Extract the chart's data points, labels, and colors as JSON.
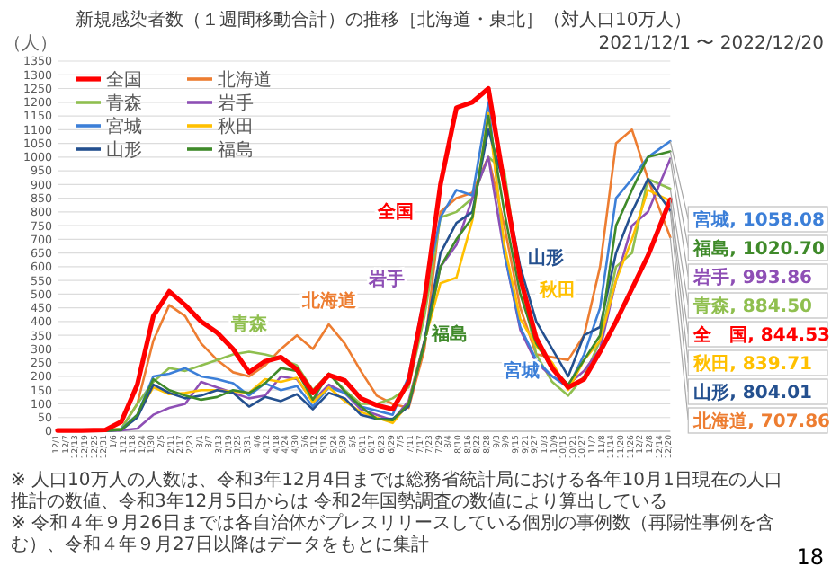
{
  "chart_data": {
    "type": "line",
    "title": "新規感染者数（１週間移動合計）の推移［北海道・東北］（対人口10万人）",
    "subtitle": "2021/12/1 〜 2022/12/20",
    "ylabel": "（人）",
    "x": [
      "2021-12-01",
      "2021-12-16",
      "2021-12-31",
      "2022-01-10",
      "2022-01-20",
      "2022-01-30",
      "2022-02-09",
      "2022-02-19",
      "2022-03-01",
      "2022-03-11",
      "2022-03-21",
      "2022-03-31",
      "2022-04-10",
      "2022-04-20",
      "2022-04-30",
      "2022-05-10",
      "2022-05-20",
      "2022-05-30",
      "2022-06-09",
      "2022-06-19",
      "2022-06-29",
      "2022-07-09",
      "2022-07-19",
      "2022-07-29",
      "2022-08-08",
      "2022-08-18",
      "2022-08-28",
      "2022-09-07",
      "2022-09-17",
      "2022-09-27",
      "2022-10-07",
      "2022-10-17",
      "2022-10-27",
      "2022-11-06",
      "2022-11-16",
      "2022-11-26",
      "2022-12-06",
      "2022-12-20"
    ],
    "series": [
      {
        "name": "全国",
        "color": "#ff0000",
        "values": [
          3,
          3,
          5,
          35,
          170,
          420,
          510,
          460,
          400,
          360,
          300,
          215,
          255,
          270,
          225,
          140,
          205,
          185,
          120,
          95,
          80,
          180,
          480,
          900,
          1180,
          1200,
          1250,
          900,
          560,
          340,
          230,
          160,
          190,
          290,
          400,
          520,
          640,
          844.53
        ]
      },
      {
        "name": "北海道",
        "color": "#ed7d31",
        "values": [
          3,
          3,
          3,
          10,
          100,
          330,
          460,
          420,
          320,
          260,
          215,
          200,
          240,
          300,
          350,
          300,
          390,
          320,
          220,
          130,
          100,
          85,
          300,
          800,
          850,
          870,
          1000,
          750,
          450,
          280,
          270,
          260,
          350,
          600,
          1050,
          1100,
          920,
          707.86
        ]
      },
      {
        "name": "青森",
        "color": "#8fbf4f",
        "values": [
          null,
          null,
          3,
          10,
          100,
          180,
          230,
          220,
          240,
          260,
          280,
          290,
          280,
          265,
          240,
          150,
          210,
          150,
          100,
          100,
          120,
          160,
          420,
          780,
          800,
          850,
          1000,
          950,
          550,
          280,
          180,
          130,
          200,
          330,
          600,
          650,
          920,
          884.5
        ]
      },
      {
        "name": "岩手",
        "color": "#8e4fb5",
        "values": [
          2,
          2,
          2,
          3,
          10,
          60,
          85,
          100,
          180,
          160,
          140,
          120,
          130,
          200,
          190,
          110,
          170,
          140,
          80,
          60,
          40,
          110,
          330,
          600,
          680,
          850,
          1000,
          650,
          370,
          250,
          200,
          170,
          220,
          300,
          550,
          750,
          800,
          993.86
        ]
      },
      {
        "name": "宮城",
        "color": "#3c7fd8",
        "values": [
          null,
          null,
          null,
          8,
          60,
          200,
          210,
          230,
          200,
          190,
          175,
          130,
          175,
          150,
          165,
          90,
          160,
          140,
          90,
          75,
          60,
          200,
          500,
          780,
          880,
          860,
          1200,
          650,
          380,
          260,
          200,
          160,
          280,
          450,
          850,
          920,
          1000,
          1058.08
        ]
      },
      {
        "name": "秋田",
        "color": "#ffc000",
        "values": [
          null,
          null,
          null,
          null,
          60,
          160,
          135,
          140,
          150,
          150,
          145,
          140,
          190,
          180,
          195,
          105,
          160,
          110,
          70,
          50,
          30,
          100,
          330,
          540,
          560,
          770,
          1160,
          680,
          410,
          310,
          250,
          150,
          260,
          330,
          550,
          700,
          880,
          839.71
        ]
      },
      {
        "name": "山形",
        "color": "#24508f",
        "values": [
          null,
          2,
          2,
          5,
          50,
          170,
          140,
          120,
          130,
          150,
          140,
          90,
          125,
          110,
          135,
          80,
          140,
          120,
          60,
          45,
          45,
          90,
          330,
          650,
          760,
          800,
          1100,
          900,
          600,
          400,
          300,
          200,
          350,
          380,
          650,
          800,
          920,
          804.01
        ]
      },
      {
        "name": "福島",
        "color": "#3f8a2a",
        "values": [
          2,
          2,
          2,
          5,
          60,
          190,
          150,
          130,
          115,
          125,
          150,
          140,
          175,
          230,
          220,
          115,
          210,
          145,
          90,
          45,
          40,
          100,
          320,
          600,
          700,
          780,
          1150,
          800,
          500,
          320,
          230,
          170,
          260,
          350,
          750,
          880,
          1000,
          1020.7
        ]
      }
    ],
    "xlim": [
      "2021-12-01",
      "2022-12-20"
    ],
    "ylim": [
      0,
      1350
    ],
    "xticks": [
      {
        "value": "2021-12-01",
        "label": "12/1"
      },
      {
        "value": "2021-12-07",
        "label": "12/7"
      },
      {
        "value": "2021-12-13",
        "label": "12/13"
      },
      {
        "value": "2021-12-19",
        "label": "12/19"
      },
      {
        "value": "2021-12-25",
        "label": "12/25"
      },
      {
        "value": "2021-12-31",
        "label": "12/31"
      },
      {
        "value": "2022-01-06",
        "label": "1/6"
      },
      {
        "value": "2022-01-12",
        "label": "1/12"
      },
      {
        "value": "2022-01-18",
        "label": "1/18"
      },
      {
        "value": "2022-01-24",
        "label": "1/24"
      },
      {
        "value": "2022-01-30",
        "label": "1/30"
      },
      {
        "value": "2022-02-05",
        "label": "2/5"
      },
      {
        "value": "2022-02-11",
        "label": "2/11"
      },
      {
        "value": "2022-02-17",
        "label": "2/17"
      },
      {
        "value": "2022-02-23",
        "label": "2/23"
      },
      {
        "value": "2022-03-01",
        "label": "3/1"
      },
      {
        "value": "2022-03-07",
        "label": "3/7"
      },
      {
        "value": "2022-03-13",
        "label": "3/13"
      },
      {
        "value": "2022-03-19",
        "label": "3/19"
      },
      {
        "value": "2022-03-25",
        "label": "3/25"
      },
      {
        "value": "2022-03-31",
        "label": "3/31"
      },
      {
        "value": "2022-04-06",
        "label": "4/6"
      },
      {
        "value": "2022-04-12",
        "label": "4/12"
      },
      {
        "value": "2022-04-18",
        "label": "4/18"
      },
      {
        "value": "2022-04-24",
        "label": "4/24"
      },
      {
        "value": "2022-04-30",
        "label": "4/30"
      },
      {
        "value": "2022-05-06",
        "label": "5/6"
      },
      {
        "value": "2022-05-12",
        "label": "5/12"
      },
      {
        "value": "2022-05-18",
        "label": "5/18"
      },
      {
        "value": "2022-05-24",
        "label": "5/24"
      },
      {
        "value": "2022-05-30",
        "label": "5/30"
      },
      {
        "value": "2022-06-05",
        "label": "6/5"
      },
      {
        "value": "2022-06-11",
        "label": "6/11"
      },
      {
        "value": "2022-06-17",
        "label": "6/17"
      },
      {
        "value": "2022-06-23",
        "label": "6/23"
      },
      {
        "value": "2022-06-29",
        "label": "6/29"
      },
      {
        "value": "2022-07-05",
        "label": "7/5"
      },
      {
        "value": "2022-07-11",
        "label": "7/11"
      },
      {
        "value": "2022-07-17",
        "label": "7/17"
      },
      {
        "value": "2022-07-23",
        "label": "7/23"
      },
      {
        "value": "2022-07-29",
        "label": "7/29"
      },
      {
        "value": "2022-08-04",
        "label": "8/4"
      },
      {
        "value": "2022-08-10",
        "label": "8/10"
      },
      {
        "value": "2022-08-16",
        "label": "8/16"
      },
      {
        "value": "2022-08-22",
        "label": "8/22"
      },
      {
        "value": "2022-08-28",
        "label": "8/28"
      },
      {
        "value": "2022-09-03",
        "label": "9/3"
      },
      {
        "value": "2022-09-09",
        "label": "9/9"
      },
      {
        "value": "2022-09-15",
        "label": "9/15"
      },
      {
        "value": "2022-09-21",
        "label": "9/21"
      },
      {
        "value": "2022-09-27",
        "label": "9/27"
      },
      {
        "value": "2022-10-03",
        "label": "10/3"
      },
      {
        "value": "2022-10-09",
        "label": "10/9"
      },
      {
        "value": "2022-10-15",
        "label": "10/15"
      },
      {
        "value": "2022-10-21",
        "label": "10/21"
      },
      {
        "value": "2022-10-27",
        "label": "10/27"
      },
      {
        "value": "2022-11-02",
        "label": "11/2"
      },
      {
        "value": "2022-11-08",
        "label": "11/8"
      },
      {
        "value": "2022-11-14",
        "label": "11/14"
      },
      {
        "value": "2022-11-20",
        "label": "11/20"
      },
      {
        "value": "2022-11-26",
        "label": "11/26"
      },
      {
        "value": "2022-12-02",
        "label": "12/2"
      },
      {
        "value": "2022-12-08",
        "label": "12/8"
      },
      {
        "value": "2022-12-14",
        "label": "12/14"
      },
      {
        "value": "2022-12-20",
        "label": "12/20"
      }
    ],
    "yticks": [
      0,
      50,
      100,
      150,
      200,
      250,
      300,
      350,
      400,
      450,
      500,
      550,
      600,
      650,
      700,
      750,
      800,
      850,
      900,
      950,
      1000,
      1050,
      1100,
      1150,
      1200,
      1250,
      1300,
      1350
    ],
    "grid": "y",
    "legend": "top left",
    "annotations": [
      {
        "text": "宮城, 1058.08",
        "x": "2022-12-20",
        "y": 1058.08
      },
      {
        "text": "福島, 1020.70",
        "x": "2022-12-20",
        "y": 1020.7
      },
      {
        "text": "岩手, 993.86",
        "x": "2022-12-20",
        "y": 993.86
      },
      {
        "text": "青森, 884.50",
        "x": "2022-12-20",
        "y": 884.5
      },
      {
        "text": "全　国, 844.53",
        "x": "2022-12-20",
        "y": 844.53
      },
      {
        "text": "秋田, 839.71",
        "x": "2022-12-20",
        "y": 839.71
      },
      {
        "text": "山形, 804.01",
        "x": "2022-12-20",
        "y": 804.01
      },
      {
        "text": "北海道, 707.86",
        "x": "2022-12-20",
        "y": 707.86
      },
      "※ 人口10万人の人数は、令和3年12月4日までは総務省統計局における各年10月1日現在の人口推計の数値、令和3年12月5日からは 令和2年国勢調査の数値により算出している",
      "※ 令和４年９月26日までは各自治体がプレスリリースしている個別の事例数（再陽性事例を含む）、令和４年９月27日以降はデータをもとに集計",
      "18"
    ]
  }
}
